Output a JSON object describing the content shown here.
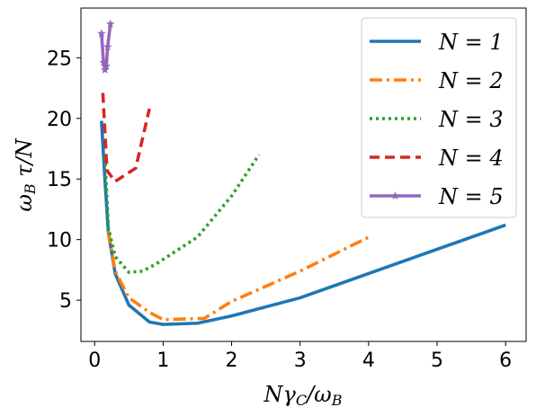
{
  "chart_data": {
    "type": "line",
    "title": "",
    "xlabel": "Nγ_C/ω_B",
    "ylabel": "ω_B τ/N",
    "xlim": [
      -0.2,
      6.3
    ],
    "ylim": [
      1.6,
      29.1
    ],
    "xticks": [
      0,
      1,
      2,
      3,
      4,
      5,
      6
    ],
    "yticks": [
      5,
      10,
      15,
      20,
      25
    ],
    "grid": false,
    "legend_position": "top-right",
    "series": [
      {
        "name": "N = 1",
        "color": "#1f77b4",
        "style": "solid",
        "marker": "none",
        "x": [
          0.1,
          0.15,
          0.2,
          0.3,
          0.5,
          0.8,
          1.0,
          1.5,
          2.0,
          3.0,
          4.0,
          5.0,
          6.0
        ],
        "y": [
          19.8,
          15.0,
          10.6,
          7.2,
          4.6,
          3.2,
          3.0,
          3.1,
          3.7,
          5.2,
          7.2,
          9.2,
          11.2
        ]
      },
      {
        "name": "N = 2",
        "color": "#ff7f0e",
        "style": "dashdot",
        "marker": "none",
        "x": [
          0.2,
          0.3,
          0.5,
          0.8,
          1.0,
          1.6,
          2.0,
          3.0,
          4.0
        ],
        "y": [
          10.7,
          7.4,
          5.2,
          4.0,
          3.4,
          3.5,
          4.9,
          7.4,
          10.2
        ]
      },
      {
        "name": "N = 3",
        "color": "#2ca02c",
        "style": "dotted",
        "marker": "none",
        "x": [
          0.15,
          0.2,
          0.3,
          0.5,
          0.7,
          0.9,
          1.5,
          2.0,
          2.4
        ],
        "y": [
          16.8,
          11.0,
          8.6,
          7.3,
          7.4,
          8.0,
          10.2,
          13.6,
          17.0
        ]
      },
      {
        "name": "N = 4",
        "color": "#d62728",
        "style": "dashed",
        "marker": "none",
        "x": [
          0.12,
          0.18,
          0.3,
          0.6,
          0.8
        ],
        "y": [
          22.1,
          15.7,
          14.8,
          15.9,
          20.8
        ]
      },
      {
        "name": "N = 5",
        "color": "#9467bd",
        "style": "solid",
        "marker": "star",
        "x": [
          0.1,
          0.13,
          0.15,
          0.17,
          0.19,
          0.23
        ],
        "y": [
          27.0,
          24.6,
          24.0,
          24.3,
          25.9,
          27.8
        ]
      }
    ]
  }
}
